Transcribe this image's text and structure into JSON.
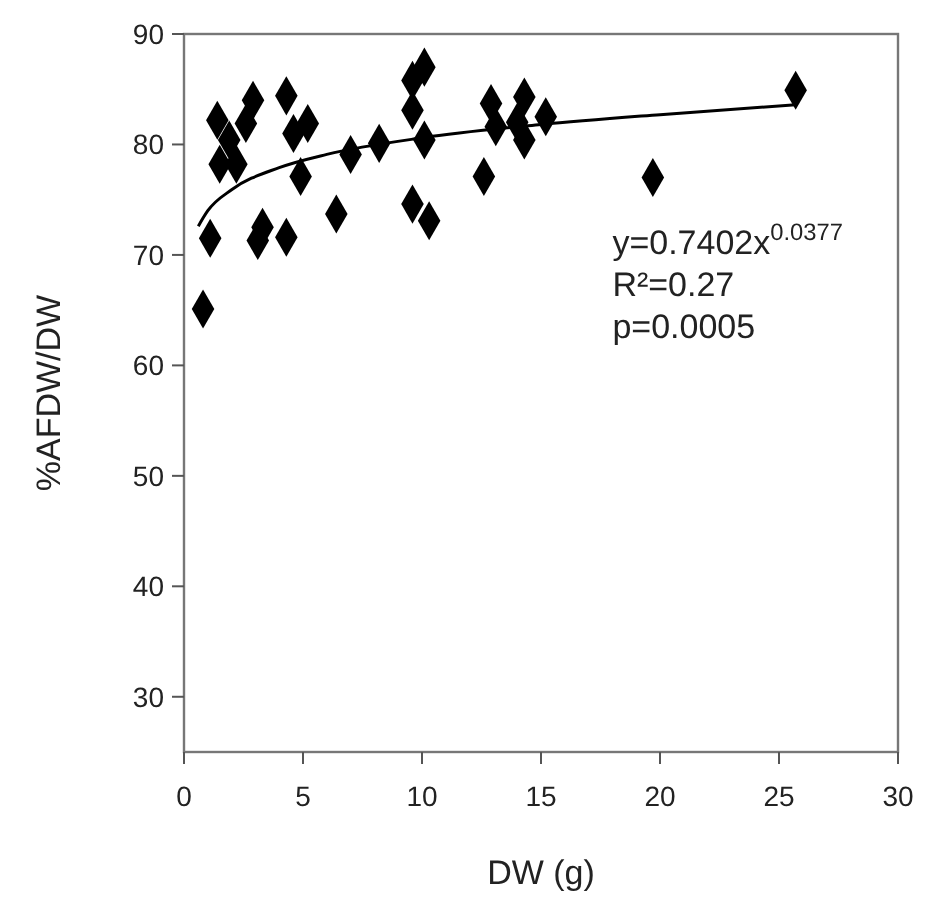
{
  "chart_data": {
    "type": "scatter",
    "xlabel": "DW (g)",
    "ylabel": "%AFDW/DW",
    "xlim": [
      0,
      30
    ],
    "xticks": [
      0,
      5,
      10,
      15,
      20,
      25,
      30
    ],
    "ylim": [
      25,
      90
    ],
    "yticks": [
      30,
      40,
      50,
      60,
      70,
      80,
      90
    ],
    "grid": false,
    "marker": "diamond",
    "series": [
      {
        "color": "#000000",
        "x": [
          0.8,
          1.1,
          1.4,
          1.5,
          2.2,
          1.9,
          2.9,
          2.6,
          3.1,
          3.3,
          4.3,
          4.3,
          4.6,
          5.2,
          4.9,
          6.4,
          7.0,
          8.2,
          9.6,
          10.3,
          10.1,
          9.6,
          9.6,
          10.1,
          12.6,
          12.9,
          13.1,
          14.3,
          14.3,
          15.2,
          14.0,
          19.7,
          25.7
        ],
        "values": [
          65.1,
          71.5,
          82.2,
          78.2,
          78.2,
          80.4,
          84.0,
          81.9,
          71.3,
          72.5,
          71.6,
          84.4,
          81.0,
          81.9,
          77.1,
          73.7,
          79.1,
          80.1,
          74.6,
          73.1,
          87.0,
          85.8,
          83.1,
          80.4,
          77.1,
          83.7,
          81.6,
          84.3,
          80.4,
          82.5,
          82.0,
          77.0,
          84.9
        ]
      },
      {
        "type": "line",
        "color": "#000000",
        "marker": "none",
        "line_style": "solid",
        "x": [
          0.6,
          1,
          2,
          4,
          6,
          10,
          15,
          20,
          25.7
        ],
        "values": [
          72.6,
          74.0,
          75.9,
          77.9,
          79.1,
          80.6,
          81.8,
          82.7,
          83.6
        ]
      }
    ],
    "annotations": [
      "y=0.7402x$^{0.0377}$",
      "R²=0.27",
      "p=0.0005"
    ]
  }
}
